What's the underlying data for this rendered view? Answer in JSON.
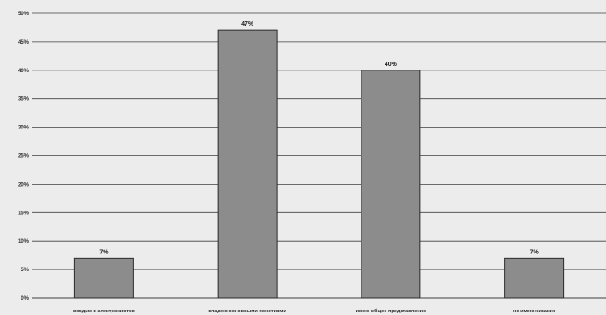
{
  "chart_data": {
    "type": "bar",
    "title": "",
    "xlabel": "",
    "ylabel": "",
    "categories": [
      "входим в электронистов",
      "владею основными понятиями",
      "имею общее представление",
      "не имею никаких"
    ],
    "values": [
      7,
      47,
      40,
      7
    ],
    "data_labels": [
      "7%",
      "47%",
      "40%",
      "7%"
    ],
    "y_ticks": [
      "0%",
      "5%",
      "10%",
      "15%",
      "20%",
      "25%",
      "30%",
      "35%",
      "40%",
      "45%",
      "50%"
    ],
    "ylim": [
      0,
      50
    ],
    "grid": true,
    "legend": "none",
    "colors": {
      "bar": "#8c8c8c",
      "bar_edge": "#2a2a2a",
      "grid": "#404040",
      "background": "#ececec"
    }
  }
}
